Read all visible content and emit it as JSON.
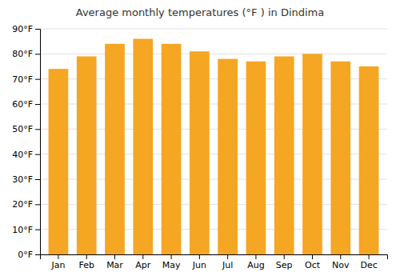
{
  "chart_data": {
    "type": "bar",
    "title": "Average monthly temperatures (°F ) in Dindima",
    "categories": [
      "Jan",
      "Feb",
      "Mar",
      "Apr",
      "May",
      "Jun",
      "Jul",
      "Aug",
      "Sep",
      "Oct",
      "Nov",
      "Dec"
    ],
    "values": [
      74,
      79,
      84,
      86,
      84,
      81,
      78,
      77,
      79,
      80,
      77,
      75
    ],
    "color": "#F5A623",
    "ylim": [
      0,
      90
    ],
    "yticks": [
      {
        "value": 0,
        "label": "0°F"
      },
      {
        "value": 10,
        "label": "10°F"
      },
      {
        "value": 20,
        "label": "20°F"
      },
      {
        "value": 30,
        "label": "30°F"
      },
      {
        "value": 40,
        "label": "40°F"
      },
      {
        "value": 50,
        "label": "50°F"
      },
      {
        "value": 60,
        "label": "60°F"
      },
      {
        "value": 70,
        "label": "70°F"
      },
      {
        "value": 80,
        "label": "80°F"
      },
      {
        "value": 90,
        "label": "90°F"
      }
    ],
    "grid": true
  }
}
